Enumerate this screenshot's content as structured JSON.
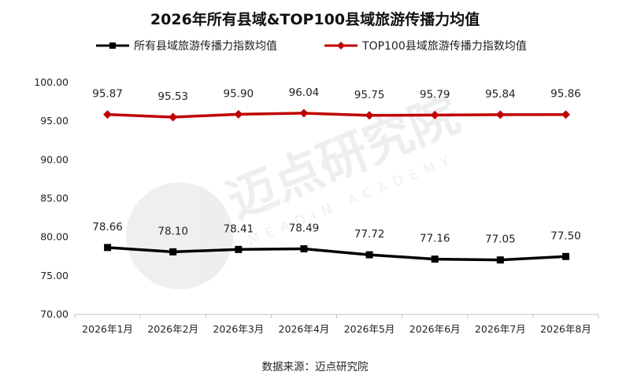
{
  "chart_data": {
    "type": "line",
    "title": "2026年所有县域&TOP100县域旅游传播力均值",
    "categories": [
      "2026年1月",
      "2026年2月",
      "2026年3月",
      "2026年4月",
      "2026年5月",
      "2026年6月",
      "2026年7月",
      "2026年8月"
    ],
    "series": [
      {
        "name": "所有县域旅游传播力指数均值",
        "color": "#000000",
        "marker": "square",
        "values": [
          78.66,
          78.1,
          78.41,
          78.49,
          77.72,
          77.16,
          77.05,
          77.5
        ]
      },
      {
        "name": "TOP100县域旅游传播力指数均值",
        "color": "#c00000",
        "marker": "diamond",
        "values": [
          95.87,
          95.53,
          95.9,
          96.04,
          95.75,
          95.79,
          95.84,
          95.86
        ]
      }
    ],
    "ylim": [
      70,
      100
    ],
    "yticks": [
      "70.00",
      "75.00",
      "80.00",
      "85.00",
      "90.00",
      "95.00",
      "100.00"
    ],
    "legend_position": "top",
    "grid": false
  },
  "source": "数据来源：迈点研究院",
  "watermark": {
    "cn": "迈点研究院",
    "en": "MEADIN ACADEMY"
  }
}
